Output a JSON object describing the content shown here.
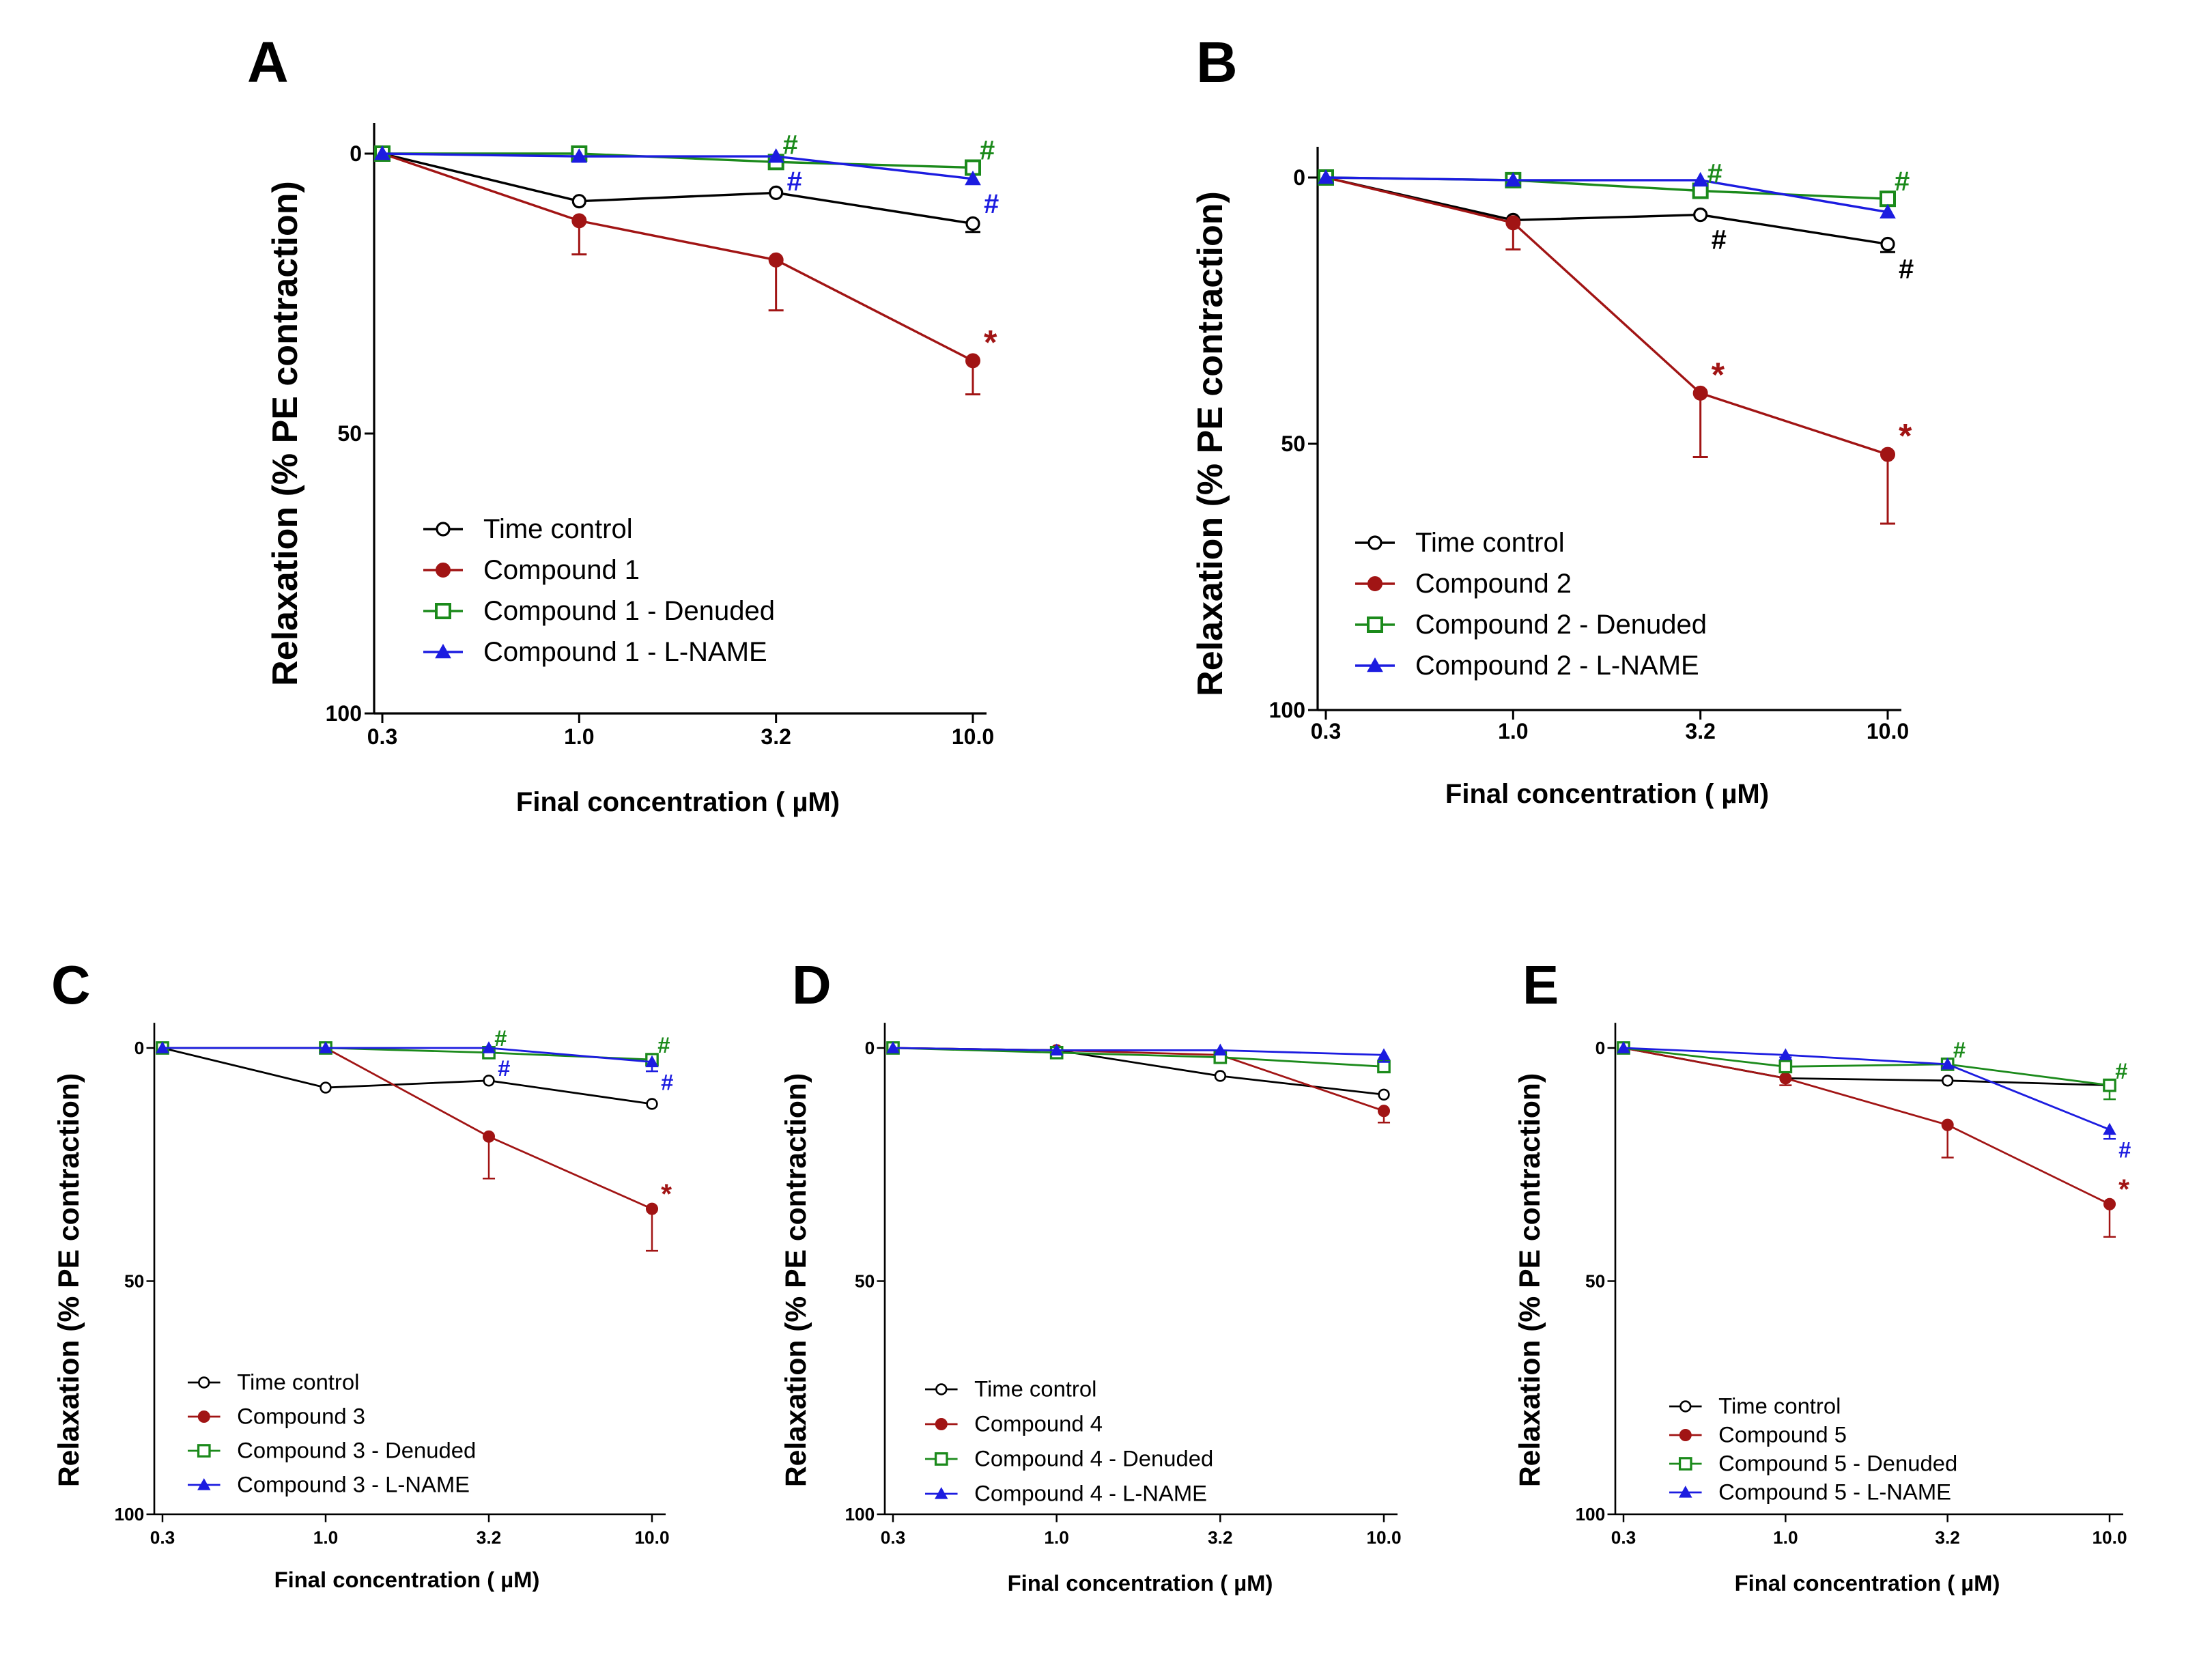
{
  "figure": {
    "colors": {
      "time_control": "#000000",
      "compound": "#a11414",
      "denuded": "#1b8a1b",
      "lname": "#1c1ce0"
    },
    "panels": [
      {
        "letter": "A",
        "ylabel": "Relaxation (% PE contraction)",
        "xlabel": "Final concentration ( µM)",
        "chart_data": {
          "type": "line",
          "categories": [
            "0.3",
            "1.0",
            "3.2",
            "10.0"
          ],
          "y_tick_labels": [
            "0",
            "50",
            "100"
          ],
          "ylim": [
            0,
            100
          ],
          "y_inverted": true,
          "series": [
            {
              "name": "Time control",
              "values": [
                0,
                8.5,
                7,
                12.5
              ],
              "errors": [
                0,
                0,
                0,
                1.5
              ]
            },
            {
              "name": "Compound 1",
              "values": [
                0,
                12,
                19,
                37
              ],
              "errors": [
                0,
                6,
                9,
                6
              ]
            },
            {
              "name": "Compound 1 - Denuded",
              "values": [
                0,
                0,
                1.5,
                2.5
              ],
              "errors": [
                0,
                0,
                0,
                0
              ]
            },
            {
              "name": "Compound 1 - L-NAME",
              "values": [
                0,
                0.5,
                0.5,
                4.5
              ],
              "errors": [
                0,
                0,
                0,
                0
              ]
            }
          ],
          "annotations": [
            {
              "text": "#",
              "series": "Compound 1 - Denuded",
              "x_index": 2
            },
            {
              "text": "#",
              "series": "Compound 1 - L-NAME",
              "x_index": 2
            },
            {
              "text": "#",
              "series": "Compound 1 - Denuded",
              "x_index": 3
            },
            {
              "text": "#",
              "series": "Compound 1 - L-NAME",
              "x_index": 3
            },
            {
              "text": "*",
              "series": "Compound 1",
              "x_index": 3
            }
          ]
        }
      },
      {
        "letter": "B",
        "ylabel": "Relaxation (% PE contraction)",
        "xlabel": "Final concentration ( µM)",
        "chart_data": {
          "type": "line",
          "categories": [
            "0.3",
            "1.0",
            "3.2",
            "10.0"
          ],
          "y_tick_labels": [
            "0",
            "50",
            "100"
          ],
          "ylim": [
            0,
            100
          ],
          "y_inverted": true,
          "series": [
            {
              "name": "Time control",
              "values": [
                0,
                8,
                7,
                12.5
              ],
              "errors": [
                0,
                0,
                0,
                1.5
              ]
            },
            {
              "name": "Compound 2",
              "values": [
                0,
                8.5,
                40.5,
                52
              ],
              "errors": [
                0,
                5,
                12,
                13
              ]
            },
            {
              "name": "Compound 2 - Denuded",
              "values": [
                0,
                0.5,
                2.5,
                4
              ],
              "errors": [
                0,
                0,
                0,
                0
              ]
            },
            {
              "name": "Compound 2 - L-NAME",
              "values": [
                0,
                0.5,
                0.5,
                6.5
              ],
              "errors": [
                0,
                0,
                0,
                0
              ]
            }
          ],
          "annotations": [
            {
              "text": "#",
              "series": "Compound 2 - Denuded",
              "x_index": 2
            },
            {
              "text": "#",
              "series": "Time control",
              "x_index": 2
            },
            {
              "text": "#",
              "series": "Compound 2 - Denuded",
              "x_index": 3
            },
            {
              "text": "#",
              "series": "Time control",
              "x_index": 3
            },
            {
              "text": "*",
              "series": "Compound 2",
              "x_index": 2
            },
            {
              "text": "*",
              "series": "Compound 2",
              "x_index": 3
            }
          ]
        }
      },
      {
        "letter": "C",
        "ylabel": "Relaxation (% PE contraction)",
        "xlabel": "Final concentration ( µM)",
        "chart_data": {
          "type": "line",
          "categories": [
            "0.3",
            "1.0",
            "3.2",
            "10.0"
          ],
          "y_tick_labels": [
            "0",
            "50",
            "100"
          ],
          "ylim": [
            0,
            100
          ],
          "y_inverted": true,
          "series": [
            {
              "name": "Time control",
              "values": [
                0,
                8.5,
                7,
                12
              ],
              "errors": [
                0,
                0,
                0,
                0
              ]
            },
            {
              "name": "Compound 3",
              "values": [
                0,
                0,
                19,
                34.5
              ],
              "errors": [
                0,
                0,
                9,
                9
              ]
            },
            {
              "name": "Compound 3 - Denuded",
              "values": [
                0,
                0,
                1,
                2.5
              ],
              "errors": [
                0,
                0,
                0,
                0
              ]
            },
            {
              "name": "Compound 3 - L-NAME",
              "values": [
                0,
                0,
                0,
                3
              ],
              "errors": [
                0,
                0,
                0,
                2
              ]
            }
          ],
          "annotations": [
            {
              "text": "#",
              "series": "Compound 3 - Denuded",
              "x_index": 2
            },
            {
              "text": "#",
              "series": "Compound 3 - L-NAME",
              "x_index": 2
            },
            {
              "text": "#",
              "series": "Compound 3 - Denuded",
              "x_index": 3
            },
            {
              "text": "#",
              "series": "Compound 3 - L-NAME",
              "x_index": 3
            },
            {
              "text": "*",
              "series": "Compound 3",
              "x_index": 3
            }
          ]
        }
      },
      {
        "letter": "D",
        "ylabel": "Relaxation (% PE contraction)",
        "xlabel": "Final concentration ( µM)",
        "chart_data": {
          "type": "line",
          "categories": [
            "0.3",
            "1.0",
            "3.2",
            "10.0"
          ],
          "y_tick_labels": [
            "0",
            "50",
            "100"
          ],
          "ylim": [
            0,
            100
          ],
          "y_inverted": true,
          "series": [
            {
              "name": "Time control",
              "values": [
                0,
                0.5,
                6,
                10
              ],
              "errors": [
                0,
                0,
                0,
                0
              ]
            },
            {
              "name": "Compound 4",
              "values": [
                0,
                0.5,
                1.5,
                13.5
              ],
              "errors": [
                0,
                0,
                0,
                2.5
              ]
            },
            {
              "name": "Compound 4 - Denuded",
              "values": [
                0,
                1,
                2,
                4
              ],
              "errors": [
                0,
                0,
                0,
                0
              ]
            },
            {
              "name": "Compound 4 - L-NAME",
              "values": [
                0,
                0.5,
                0.5,
                1.5
              ],
              "errors": [
                0,
                0,
                0,
                1.5
              ]
            }
          ],
          "annotations": []
        }
      },
      {
        "letter": "E",
        "ylabel": "Relaxation (% PE contraction)",
        "xlabel": "Final concentration ( µM)",
        "chart_data": {
          "type": "line",
          "categories": [
            "0.3",
            "1.0",
            "3.2",
            "10.0"
          ],
          "y_tick_labels": [
            "0",
            "50",
            "100"
          ],
          "ylim": [
            0,
            100
          ],
          "y_inverted": true,
          "series": [
            {
              "name": "Time control",
              "values": [
                0,
                6.5,
                7,
                8
              ],
              "errors": [
                0,
                0,
                0,
                0
              ]
            },
            {
              "name": "Compound 5",
              "values": [
                0,
                6.5,
                16.5,
                33.5
              ],
              "errors": [
                0,
                1.5,
                7,
                7
              ]
            },
            {
              "name": "Compound 5 - Denuded",
              "values": [
                0,
                4,
                3.5,
                8
              ],
              "errors": [
                0,
                0,
                1,
                3
              ]
            },
            {
              "name": "Compound 5 - L-NAME",
              "values": [
                0,
                1.5,
                3.5,
                17.5
              ],
              "errors": [
                0,
                0.5,
                0,
                2
              ]
            }
          ],
          "annotations": [
            {
              "text": "#",
              "series": "Compound 5 - Denuded",
              "x_index": 2
            },
            {
              "text": "#",
              "series": "Compound 5 - Denuded",
              "x_index": 3
            },
            {
              "text": "#",
              "series": "Compound 5 - L-NAME",
              "x_index": 3
            },
            {
              "text": "*",
              "series": "Compound 5",
              "x_index": 3
            }
          ]
        }
      }
    ]
  }
}
